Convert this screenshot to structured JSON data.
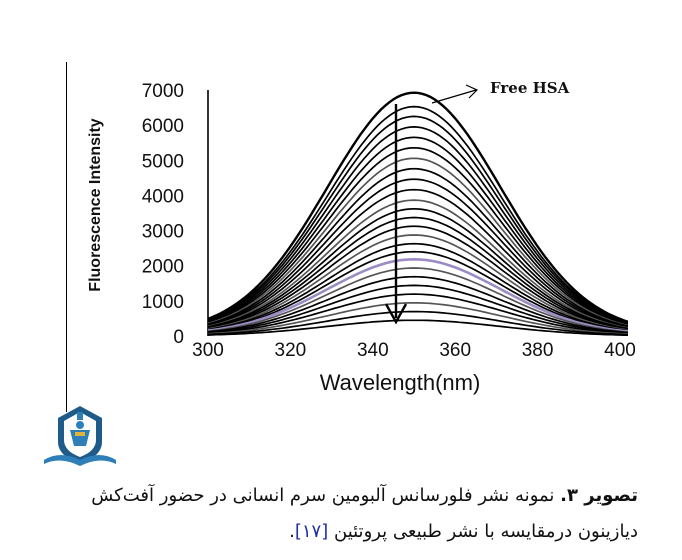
{
  "chart_data": {
    "type": "line",
    "ylabel": "Fluorescence Intensity",
    "xlabel": "Wavelength(nm)",
    "xlim": [
      300,
      400
    ],
    "ylim": [
      0,
      7000
    ],
    "x_ticks": [
      300,
      320,
      340,
      360,
      380,
      400
    ],
    "y_ticks": [
      0,
      1000,
      2000,
      3000,
      4000,
      5000,
      6000,
      7000
    ],
    "peak_wavelength": 350,
    "annotation": "Free HSA",
    "highlight_color": "#9b8cc4",
    "line_color": "#000000",
    "series": [
      {
        "peak": 6980,
        "x": [
          300,
          320,
          340,
          350,
          360,
          380,
          400
        ],
        "y": [
          555,
          3060,
          6480,
          6980,
          6480,
          3060,
          940
        ]
      },
      {
        "peak": 6580,
        "x": [
          300,
          320,
          340,
          350,
          360,
          380,
          400
        ],
        "y": [
          520,
          2890,
          6110,
          6580,
          6110,
          2890,
          890
        ]
      },
      {
        "peak": 6300,
        "x": [
          300,
          320,
          340,
          350,
          360,
          380,
          400
        ],
        "y": [
          500,
          2760,
          5850,
          6300,
          5850,
          2760,
          850
        ]
      },
      {
        "peak": 6000,
        "x": [
          300,
          320,
          340,
          350,
          360,
          380,
          400
        ],
        "y": [
          480,
          2630,
          5570,
          6000,
          5570,
          2630,
          810
        ]
      },
      {
        "peak": 5700,
        "x": [
          300,
          320,
          340,
          350,
          360,
          380,
          400
        ],
        "y": [
          450,
          2500,
          5290,
          5700,
          5290,
          2500,
          770
        ]
      },
      {
        "peak": 5400,
        "x": [
          300,
          320,
          340,
          350,
          360,
          380,
          400
        ],
        "y": [
          430,
          2370,
          5010,
          5400,
          5010,
          2370,
          730
        ]
      },
      {
        "peak": 5100,
        "x": [
          300,
          320,
          340,
          350,
          360,
          380,
          400
        ],
        "y": [
          400,
          2240,
          4730,
          5100,
          4730,
          2240,
          690
        ]
      },
      {
        "peak": 4800,
        "x": [
          300,
          320,
          340,
          350,
          360,
          380,
          400
        ],
        "y": [
          380,
          2100,
          4460,
          4800,
          4460,
          2100,
          650
        ]
      },
      {
        "peak": 4500,
        "x": [
          300,
          320,
          340,
          350,
          360,
          380,
          400
        ],
        "y": [
          360,
          1970,
          4180,
          4500,
          4180,
          1970,
          610
        ]
      },
      {
        "peak": 4200,
        "x": [
          300,
          320,
          340,
          350,
          360,
          380,
          400
        ],
        "y": [
          330,
          1840,
          3900,
          4200,
          3900,
          1840,
          570
        ]
      },
      {
        "peak": 3900,
        "x": [
          300,
          320,
          340,
          350,
          360,
          380,
          400
        ],
        "y": [
          310,
          1710,
          3620,
          3900,
          3620,
          1710,
          530
        ]
      },
      {
        "peak": 3650,
        "x": [
          300,
          320,
          340,
          350,
          360,
          380,
          400
        ],
        "y": [
          290,
          1600,
          3390,
          3650,
          3390,
          1600,
          490
        ]
      },
      {
        "peak": 3400,
        "x": [
          300,
          320,
          340,
          350,
          360,
          380,
          400
        ],
        "y": [
          270,
          1490,
          3160,
          3400,
          3160,
          1490,
          460
        ]
      },
      {
        "peak": 3150,
        "x": [
          300,
          320,
          340,
          350,
          360,
          380,
          400
        ],
        "y": [
          250,
          1380,
          2920,
          3150,
          2920,
          1380,
          430
        ]
      },
      {
        "peak": 2900,
        "x": [
          300,
          320,
          340,
          350,
          360,
          380,
          400
        ],
        "y": [
          230,
          1270,
          2690,
          2900,
          2690,
          1270,
          390
        ]
      },
      {
        "peak": 2650,
        "x": [
          300,
          320,
          340,
          350,
          360,
          380,
          400
        ],
        "y": [
          210,
          1160,
          2460,
          2650,
          2460,
          1160,
          360
        ]
      },
      {
        "peak": 2420,
        "x": [
          300,
          320,
          340,
          350,
          360,
          380,
          400
        ],
        "y": [
          190,
          1060,
          2250,
          2420,
          2250,
          1060,
          330
        ]
      },
      {
        "peak": 2200,
        "x": [
          300,
          320,
          340,
          350,
          360,
          380,
          400
        ],
        "y": [
          170,
          960,
          2040,
          2200,
          2040,
          960,
          300
        ]
      },
      {
        "peak": 1950,
        "x": [
          300,
          320,
          340,
          350,
          360,
          380,
          400
        ],
        "y": [
          150,
          860,
          1810,
          1950,
          1810,
          860,
          260
        ]
      },
      {
        "peak": 1700,
        "x": [
          300,
          320,
          340,
          350,
          360,
          380,
          400
        ],
        "y": [
          130,
          750,
          1580,
          1700,
          1580,
          750,
          230
        ]
      },
      {
        "peak": 1450,
        "x": [
          300,
          320,
          340,
          350,
          360,
          380,
          400
        ],
        "y": [
          115,
          640,
          1350,
          1450,
          1350,
          640,
          200
        ]
      },
      {
        "peak": 1200,
        "x": [
          300,
          320,
          340,
          350,
          360,
          380,
          400
        ],
        "y": [
          95,
          530,
          1110,
          1200,
          1110,
          530,
          160
        ]
      },
      {
        "peak": 950,
        "x": [
          300,
          320,
          340,
          350,
          360,
          380,
          400
        ],
        "y": [
          75,
          420,
          880,
          950,
          880,
          420,
          130
        ]
      },
      {
        "peak": 700,
        "x": [
          300,
          320,
          340,
          350,
          360,
          380,
          400
        ],
        "y": [
          55,
          310,
          650,
          700,
          650,
          310,
          95
        ]
      },
      {
        "peak": 450,
        "x": [
          300,
          320,
          340,
          350,
          360,
          380,
          400
        ],
        "y": [
          35,
          200,
          420,
          450,
          420,
          200,
          60
        ]
      }
    ],
    "highlight_series_index": 17
  },
  "caption": {
    "lead": "تصویر ۳.",
    "text": " نمونه نشر فلورسانس آلبومین سرم انسانی در حضور آفت‌کش دیازینون درمقایسه با نشر طبیعی پروتئین ",
    "ref": "[۱۷]",
    "end": "."
  },
  "logo": {
    "name": "university-emblem"
  }
}
